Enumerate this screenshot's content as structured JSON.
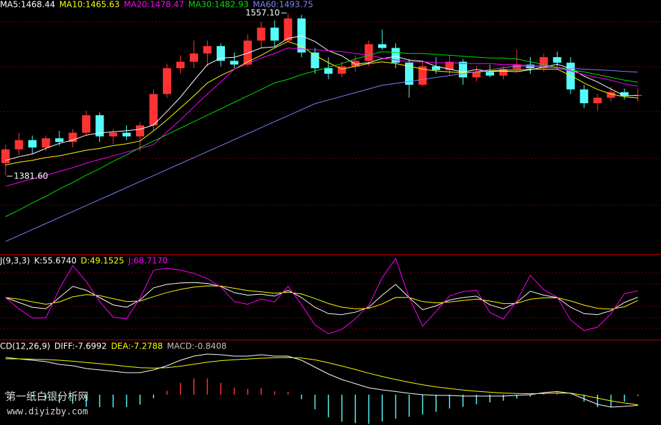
{
  "chart_data": [
    {
      "type": "candlestick",
      "open": [
        1395,
        1410,
        1420,
        1412,
        1422,
        1418,
        1428,
        1447,
        1424,
        1428,
        1424,
        1436,
        1470,
        1498,
        1505,
        1514,
        1522,
        1506,
        1502,
        1528,
        1542,
        1528,
        1552,
        1515,
        1498,
        1492,
        1500,
        1506,
        1524,
        1520,
        1504,
        1480,
        1500,
        1496,
        1505,
        1488,
        1494,
        1490,
        1497,
        1502,
        1498,
        1510,
        1504,
        1475,
        1460,
        1466,
        1472,
        1468
      ],
      "high": [
        1415,
        1428,
        1425,
        1425,
        1430,
        1432,
        1452,
        1450,
        1432,
        1436,
        1440,
        1475,
        1503,
        1512,
        1528,
        1528,
        1525,
        1515,
        1535,
        1548,
        1550,
        1557.1,
        1556,
        1520,
        1510,
        1505,
        1512,
        1528,
        1540,
        1525,
        1508,
        1505,
        1510,
        1512,
        1508,
        1500,
        1502,
        1500,
        1518,
        1510,
        1514,
        1516,
        1510,
        1480,
        1470,
        1478,
        1476,
        1476
      ],
      "low": [
        1381.6,
        1404,
        1405,
        1408,
        1414,
        1412,
        1425,
        1418,
        1416,
        1420,
        1408,
        1430,
        1466,
        1492,
        1498,
        1500,
        1500,
        1498,
        1500,
        1520,
        1522,
        1526,
        1510,
        1492,
        1486,
        1488,
        1494,
        1500,
        1518,
        1498,
        1466,
        1478,
        1492,
        1490,
        1480,
        1484,
        1488,
        1486,
        1494,
        1492,
        1494,
        1500,
        1470,
        1455,
        1452,
        1462,
        1464,
        1462
      ],
      "close": [
        1410,
        1420,
        1412,
        1422,
        1418,
        1428,
        1447,
        1424,
        1428,
        1424,
        1436,
        1470,
        1498,
        1505,
        1514,
        1522,
        1506,
        1502,
        1528,
        1542,
        1528,
        1552,
        1515,
        1498,
        1492,
        1500,
        1506,
        1524,
        1520,
        1504,
        1480,
        1500,
        1496,
        1505,
        1488,
        1494,
        1490,
        1497,
        1502,
        1498,
        1510,
        1504,
        1475,
        1460,
        1466,
        1472,
        1468,
        1469
      ],
      "up_color": "#ff3232",
      "down_color": "#54fcfc",
      "ylim": [
        1297,
        1572
      ],
      "high_label": "1557.10",
      "low_label": "1381.60",
      "series": [
        {
          "name": "MA5:1468.44",
          "color": "#ffffff",
          "values": [
            1398,
            1402,
            1405,
            1411,
            1416.4,
            1420,
            1425.4,
            1427.8,
            1429,
            1430.2,
            1431.8,
            1436.4,
            1451.2,
            1466.6,
            1484.6,
            1501.8,
            1509,
            1509.8,
            1514.4,
            1520,
            1521.2,
            1530.4,
            1533,
            1527,
            1517,
            1511.4,
            1502.2,
            1504,
            1508.4,
            1510.8,
            1506.8,
            1505.6,
            1500,
            1497,
            1493.8,
            1496.6,
            1494.6,
            1494.8,
            1494.2,
            1496.2,
            1499.4,
            1502.2,
            1497.8,
            1489.4,
            1483,
            1475.4,
            1468.2,
            1468.44
          ]
        },
        {
          "name": "MA10:1465.63",
          "color": "#ffff00",
          "values": [
            1393,
            1396,
            1398,
            1401,
            1403,
            1406,
            1409,
            1411,
            1414,
            1416,
            1419,
            1430,
            1442,
            1455,
            1468,
            1482,
            1490,
            1497,
            1505,
            1512,
            1520,
            1527,
            1522,
            1512,
            1504,
            1497,
            1500,
            1503,
            1505,
            1503,
            1500,
            1497,
            1495,
            1494,
            1493,
            1494,
            1495,
            1496,
            1496,
            1497,
            1497,
            1497,
            1490,
            1482,
            1475,
            1470,
            1467,
            1465.63
          ]
        },
        {
          "name": "MA20:1478.47",
          "color": "#ff00ff",
          "values": [
            1370,
            1374,
            1378,
            1382,
            1386,
            1390,
            1395,
            1399,
            1403,
            1407,
            1411,
            1415,
            1429,
            1442,
            1456,
            1470,
            1483,
            1497,
            1503,
            1509,
            1514,
            1520,
            1519,
            1518,
            1517,
            1516,
            1514,
            1512,
            1509,
            1507,
            1505,
            1505,
            1504,
            1504,
            1503,
            1503,
            1503,
            1502,
            1502,
            1501,
            1501,
            1498,
            1495,
            1491,
            1488,
            1485,
            1481,
            1478.47
          ]
        },
        {
          "name": "MA30:1482.93",
          "color": "#00e000",
          "values": [
            1337,
            1344,
            1352,
            1359,
            1367,
            1374,
            1382,
            1389,
            1397,
            1404,
            1412,
            1419,
            1426,
            1433,
            1440,
            1447,
            1454,
            1461,
            1468,
            1475,
            1482,
            1486,
            1491,
            1495,
            1499,
            1503,
            1508,
            1512,
            1516,
            1515,
            1514,
            1514,
            1513,
            1512,
            1511,
            1510,
            1509,
            1509,
            1508,
            1505,
            1502,
            1499,
            1496,
            1494,
            1491,
            1488,
            1485,
            1482.93
          ]
        },
        {
          "name": "MA60:1493.75",
          "color": "#8080ff",
          "values": [
            1310,
            1316.5,
            1323,
            1329.5,
            1336,
            1342.5,
            1349,
            1355.5,
            1362,
            1368.5,
            1375,
            1381.5,
            1388,
            1394.5,
            1401,
            1407.5,
            1414,
            1420.5,
            1427,
            1433.5,
            1440,
            1446.5,
            1453,
            1459.5,
            1463.5,
            1467.5,
            1471.5,
            1475.5,
            1479.5,
            1481.6,
            1483.7,
            1485.8,
            1487.9,
            1490,
            1492.1,
            1494.2,
            1496.3,
            1498.4,
            1500.5,
            1500,
            1499.2,
            1498.5,
            1497.7,
            1497,
            1496.2,
            1495.5,
            1494.6,
            1493.75
          ]
        }
      ]
    },
    {
      "type": "line",
      "title": "J(9,3,3)",
      "ylim": [
        -30,
        140
      ],
      "series": [
        {
          "name": "K:55.6740",
          "color": "#ffffff",
          "values": [
            55,
            45,
            35,
            32,
            55,
            78,
            70,
            55,
            40,
            35,
            50,
            75,
            82,
            85,
            86,
            84,
            78,
            65,
            60,
            62,
            58,
            70,
            55,
            35,
            22,
            20,
            25,
            35,
            60,
            82,
            55,
            30,
            38,
            50,
            55,
            58,
            40,
            32,
            45,
            68,
            60,
            55,
            35,
            22,
            20,
            28,
            45,
            55.674
          ]
        },
        {
          "name": "D:49.1525",
          "color": "#ffff00",
          "values": [
            55,
            51.7,
            46.1,
            41.4,
            45.9,
            56.6,
            61.1,
            59.1,
            52.7,
            46.8,
            47.9,
            56.9,
            65.3,
            71.9,
            76.6,
            79.1,
            78.7,
            74.1,
            69.4,
            66.9,
            63.9,
            65.9,
            62.3,
            53.2,
            42.8,
            35.2,
            31.8,
            32.9,
            41.9,
            55.3,
            55.2,
            46.8,
            43.9,
            45.9,
            48.9,
            51.9,
            47.9,
            42.6,
            43.4,
            51.6,
            54.4,
            54.6,
            48.1,
            39.4,
            32.9,
            31.3,
            35.9,
            49.1525
          ]
        },
        {
          "name": "J:68.7170",
          "color": "#ff00ff",
          "values": [
            55,
            31.6,
            12.8,
            13.2,
            73.2,
            120.8,
            87.8,
            46.8,
            14.6,
            11.4,
            54.2,
            111.2,
            115.4,
            111.2,
            104.8,
            93.8,
            76.6,
            46.8,
            41.2,
            52.2,
            46.2,
            78.2,
            40.4,
            -1.4,
            -19.6,
            -10.4,
            11.4,
            39.2,
            96.2,
            135.4,
            54.6,
            -3.6,
            26.2,
            58.2,
            67.2,
            70.2,
            24.2,
            10.8,
            48.2,
            100.8,
            71.2,
            55.8,
            8.8,
            -12.8,
            -5.8,
            21.4,
            63.2,
            68.717
          ]
        }
      ]
    },
    {
      "type": "macd",
      "title": "CD(12,26,9)",
      "ylim": [
        -22,
        38
      ],
      "up_color": "#ff3232",
      "down_color": "#54fcfc",
      "series": [
        {
          "name": "DIFF:-7.6992",
          "color": "#ffffff",
          "values": [
            27,
            26,
            25,
            24,
            22,
            21,
            19,
            18,
            17,
            16,
            16,
            18,
            21,
            25,
            28,
            29.5,
            29,
            28,
            28,
            29,
            28,
            28,
            25,
            20,
            15,
            11,
            8,
            5,
            3.5,
            2.3,
            1,
            0,
            -0.5,
            -0.5,
            -1,
            -1,
            -1,
            -1,
            -0.5,
            0,
            1.5,
            2.3,
            1,
            -3,
            -7,
            -9,
            -8.5,
            -7.6992
          ]
        },
        {
          "name": "DEA:-7.2788",
          "color": "#ffff00",
          "values": [
            26,
            26,
            25.8,
            25.5,
            25,
            24.3,
            23.4,
            22.5,
            21.6,
            20.5,
            19.6,
            19.3,
            19.6,
            20.7,
            22.1,
            23.6,
            24.7,
            25.4,
            25.9,
            26.5,
            26.8,
            27,
            26.6,
            25.3,
            23.2,
            20.8,
            18.3,
            15.6,
            13.2,
            11,
            9,
            7.2,
            5.7,
            4.5,
            3.4,
            2.5,
            1.8,
            1.2,
            0.9,
            0.7,
            0.9,
            1.2,
            1.1,
            -0.5,
            -2.5,
            -4.5,
            -6,
            -7.2788
          ]
        },
        {
          "name": "MACD:-0.8408",
          "color": "#c0c0c0",
          "kind": "bar",
          "values": [
            2,
            0,
            -1.6,
            -3,
            -6,
            -6.6,
            -8.8,
            -9,
            -9.2,
            -9,
            -7.2,
            -2.6,
            2.8,
            8.6,
            11.8,
            11.8,
            8.6,
            5.2,
            4.2,
            5,
            2.4,
            2,
            -3.2,
            -10.6,
            -16.4,
            -19.6,
            -20.6,
            -21.2,
            -19.4,
            -17.4,
            -16,
            -14.4,
            -12.4,
            -10,
            -8.8,
            -7,
            -5.6,
            -4.4,
            -2.8,
            -1.4,
            1.2,
            2.2,
            -0.2,
            -5,
            -9,
            -9,
            -5,
            -0.8408
          ]
        }
      ]
    }
  ],
  "watermark": {
    "title": "第一纸白银分析网",
    "url": "www.diyizby.com"
  }
}
